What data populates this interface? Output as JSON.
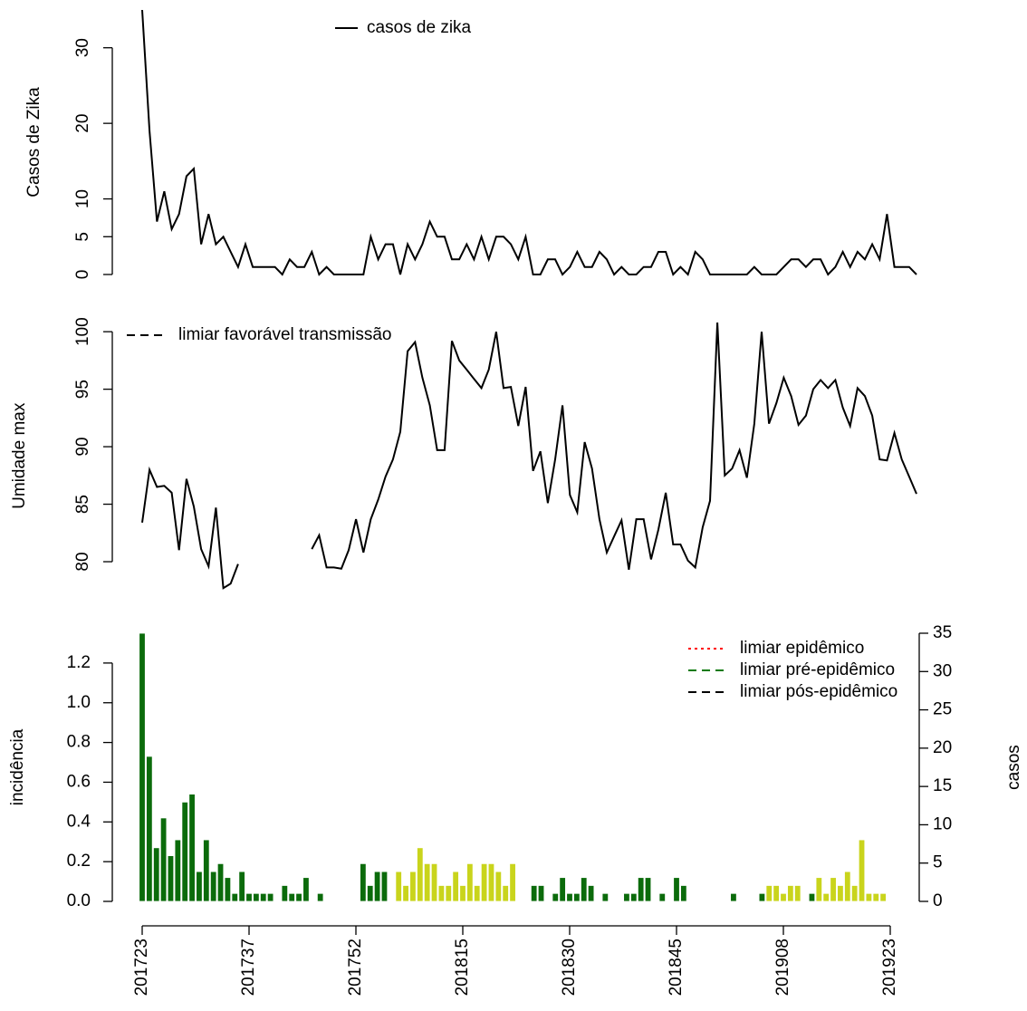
{
  "chart_data": [
    {
      "type": "line",
      "ylabel": "Casos de Zika",
      "ylim": [
        0,
        35
      ],
      "yticks": [
        0,
        5,
        10,
        20,
        30
      ],
      "series": [
        {
          "name": "casos de zika",
          "color": "#000000",
          "values": [
            35,
            19,
            7,
            11,
            6,
            8,
            13,
            14,
            4,
            8,
            4,
            5,
            3,
            1,
            4,
            1,
            1,
            1,
            1,
            0,
            2,
            1,
            1,
            3,
            0,
            1,
            0,
            0,
            0,
            0,
            0,
            5,
            2,
            4,
            4,
            0,
            4,
            2,
            4,
            7,
            5,
            5,
            2,
            2,
            4,
            2,
            5,
            2,
            5,
            5,
            4,
            2,
            5,
            0,
            0,
            2,
            2,
            0,
            1,
            3,
            1,
            1,
            3,
            2,
            0,
            1,
            0,
            0,
            1,
            1,
            3,
            3,
            0,
            1,
            0,
            3,
            2,
            0,
            0,
            0,
            0,
            0,
            0,
            1,
            0,
            0,
            0,
            1,
            2,
            2,
            1,
            2,
            2,
            0,
            1,
            3,
            1,
            3,
            2,
            4,
            2,
            8,
            1,
            1,
            1,
            0
          ]
        }
      ]
    },
    {
      "type": "line",
      "ylabel": "Umidade max",
      "ylim": [
        77.6,
        100.8
      ],
      "yticks": [
        80,
        85,
        90,
        95,
        100
      ],
      "series": [
        {
          "color": "#000000",
          "values": [
            83.4,
            88,
            86.5,
            86.6,
            86,
            81,
            87.2,
            84.8,
            81.1,
            79.6,
            84.7,
            77.7,
            78.1,
            79.8,
            null,
            null,
            null,
            null,
            null,
            null,
            null,
            null,
            null,
            81.1,
            82.3,
            79.5,
            79.5,
            79.4,
            81,
            83.7,
            80.8,
            83.7,
            85.4,
            87.4,
            88.9,
            91.3,
            98.3,
            99.1,
            96,
            93.6,
            89.7,
            89.7,
            99.2,
            97.5,
            96.7,
            95.9,
            95.1,
            96.7,
            100,
            95.1,
            95.2,
            91.8,
            95.2,
            87.9,
            89.6,
            85.1,
            88.9,
            93.6,
            85.8,
            84.3,
            90.4,
            88.1,
            83.7,
            80.8,
            82.2,
            83.6,
            79.3,
            83.7,
            83.7,
            80.2,
            82.8,
            86,
            81.5,
            81.5,
            80.1,
            79.5,
            83,
            85.3,
            100.8,
            87.5,
            88.1,
            89.7,
            87.3,
            92,
            100,
            92,
            93.8,
            96,
            94.4,
            91.9,
            92.7,
            95,
            95.8,
            95.1,
            95.8,
            93.4,
            91.8,
            95.1,
            94.4,
            92.7,
            88.9,
            88.8,
            91.2,
            88.9,
            87.4,
            85.9
          ]
        }
      ],
      "legend": [
        {
          "name": "limiar favorável transmissão",
          "color": "#000000",
          "style": "dashed"
        }
      ]
    },
    {
      "type": "bar",
      "ylabel": "incidência",
      "y2label": "casos",
      "ylim": [
        0,
        1.35
      ],
      "yticks": [
        {
          "value": 0,
          "label": "0.0"
        },
        0.2,
        0.4,
        0.6,
        0.8,
        {
          "value": 1,
          "label": "1.0"
        },
        1.2
      ],
      "y2lim": [
        0,
        35
      ],
      "y2ticks": [
        0,
        5,
        10,
        15,
        20,
        25,
        30,
        35
      ],
      "y2color": "#aaaaaa",
      "categories": [
        "201723",
        null,
        null,
        null,
        null,
        null,
        null,
        null,
        null,
        null,
        null,
        null,
        null,
        null,
        null,
        "201737",
        null,
        null,
        null,
        null,
        null,
        null,
        null,
        null,
        null,
        null,
        null,
        null,
        null,
        null,
        "201752",
        null,
        null,
        null,
        null,
        null,
        null,
        null,
        null,
        null,
        null,
        null,
        null,
        null,
        null,
        "201815",
        null,
        null,
        null,
        null,
        null,
        null,
        null,
        null,
        null,
        null,
        null,
        null,
        null,
        null,
        "201830",
        null,
        null,
        null,
        null,
        null,
        null,
        null,
        null,
        null,
        null,
        null,
        null,
        null,
        null,
        "201845",
        null,
        null,
        null,
        null,
        null,
        null,
        null,
        null,
        null,
        null,
        null,
        null,
        null,
        null,
        "201908",
        null,
        null,
        null,
        null,
        null,
        null,
        null,
        null,
        null,
        null,
        null,
        null,
        null,
        null,
        "201923"
      ],
      "values": [
        1.35,
        0.73,
        0.27,
        0.42,
        0.23,
        0.31,
        0.5,
        0.54,
        0.15,
        0.31,
        0.15,
        0.19,
        0.12,
        0.04,
        0.15,
        0.04,
        0.04,
        0.04,
        0.04,
        0,
        0.08,
        0.04,
        0.04,
        0.12,
        0,
        0.04,
        0,
        0,
        0,
        0,
        0,
        0.19,
        0.08,
        0.15,
        0.15,
        0,
        0.15,
        0.08,
        0.15,
        0.27,
        0.19,
        0.19,
        0.08,
        0.08,
        0.15,
        0.08,
        0.19,
        0.08,
        0.19,
        0.19,
        0.15,
        0.08,
        0.19,
        0,
        0,
        0.08,
        0.08,
        0,
        0.04,
        0.12,
        0.04,
        0.04,
        0.12,
        0.08,
        0,
        0.04,
        0,
        0,
        0.04,
        0.04,
        0.12,
        0.12,
        0,
        0.04,
        0,
        0.12,
        0.08,
        0,
        0,
        0,
        0,
        0,
        0,
        0.04,
        0,
        0,
        0,
        0.04,
        0.08,
        0.08,
        0.04,
        0.08,
        0.08,
        0,
        0.04,
        0.12,
        0.04,
        0.12,
        0.08,
        0.15,
        0.08,
        0.31,
        0.04,
        0.04,
        0.04,
        0
      ],
      "colors": [
        "#0b6b0b",
        "#0b6b0b",
        "#0b6b0b",
        "#0b6b0b",
        "#0b6b0b",
        "#0b6b0b",
        "#0b6b0b",
        "#0b6b0b",
        "#0b6b0b",
        "#0b6b0b",
        "#0b6b0b",
        "#0b6b0b",
        "#0b6b0b",
        "#0b6b0b",
        "#0b6b0b",
        "#0b6b0b",
        "#0b6b0b",
        "#0b6b0b",
        "#0b6b0b",
        "#0b6b0b",
        "#0b6b0b",
        "#0b6b0b",
        "#0b6b0b",
        "#0b6b0b",
        "#0b6b0b",
        "#0b6b0b",
        "#0b6b0b",
        "#0b6b0b",
        "#0b6b0b",
        "#0b6b0b",
        "#0b6b0b",
        "#0b6b0b",
        "#0b6b0b",
        "#0b6b0b",
        "#0b6b0b",
        "#0b6b0b",
        "#c9d41c",
        "#c9d41c",
        "#c9d41c",
        "#c9d41c",
        "#c9d41c",
        "#c9d41c",
        "#c9d41c",
        "#c9d41c",
        "#c9d41c",
        "#c9d41c",
        "#c9d41c",
        "#c9d41c",
        "#c9d41c",
        "#c9d41c",
        "#c9d41c",
        "#c9d41c",
        "#c9d41c",
        "#0b6b0b",
        "#0b6b0b",
        "#0b6b0b",
        "#0b6b0b",
        "#0b6b0b",
        "#0b6b0b",
        "#0b6b0b",
        "#0b6b0b",
        "#0b6b0b",
        "#0b6b0b",
        "#0b6b0b",
        "#0b6b0b",
        "#0b6b0b",
        "#0b6b0b",
        "#0b6b0b",
        "#0b6b0b",
        "#0b6b0b",
        "#0b6b0b",
        "#0b6b0b",
        "#0b6b0b",
        "#0b6b0b",
        "#0b6b0b",
        "#0b6b0b",
        "#0b6b0b",
        "#0b6b0b",
        "#0b6b0b",
        "#0b6b0b",
        "#0b6b0b",
        "#0b6b0b",
        "#0b6b0b",
        "#0b6b0b",
        "#0b6b0b",
        "#0b6b0b",
        "#0b6b0b",
        "#0b6b0b",
        "#c9d41c",
        "#c9d41c",
        "#c9d41c",
        "#c9d41c",
        "#c9d41c",
        "#0b6b0b",
        "#0b6b0b",
        "#c9d41c",
        "#c9d41c",
        "#c9d41c",
        "#c9d41c",
        "#c9d41c",
        "#c9d41c",
        "#c9d41c",
        "#c9d41c",
        "#c9d41c",
        "#c9d41c",
        "#c9d41c"
      ],
      "legend": [
        {
          "name": "limiar epidêmico",
          "color": "#ff0000",
          "style": "dotted"
        },
        {
          "name": "limiar pré-epidêmico",
          "color": "#0b7a0b",
          "style": "dashed"
        },
        {
          "name": "limiar pós-epidêmico",
          "color": "#000000",
          "style": "dashed"
        }
      ]
    }
  ]
}
